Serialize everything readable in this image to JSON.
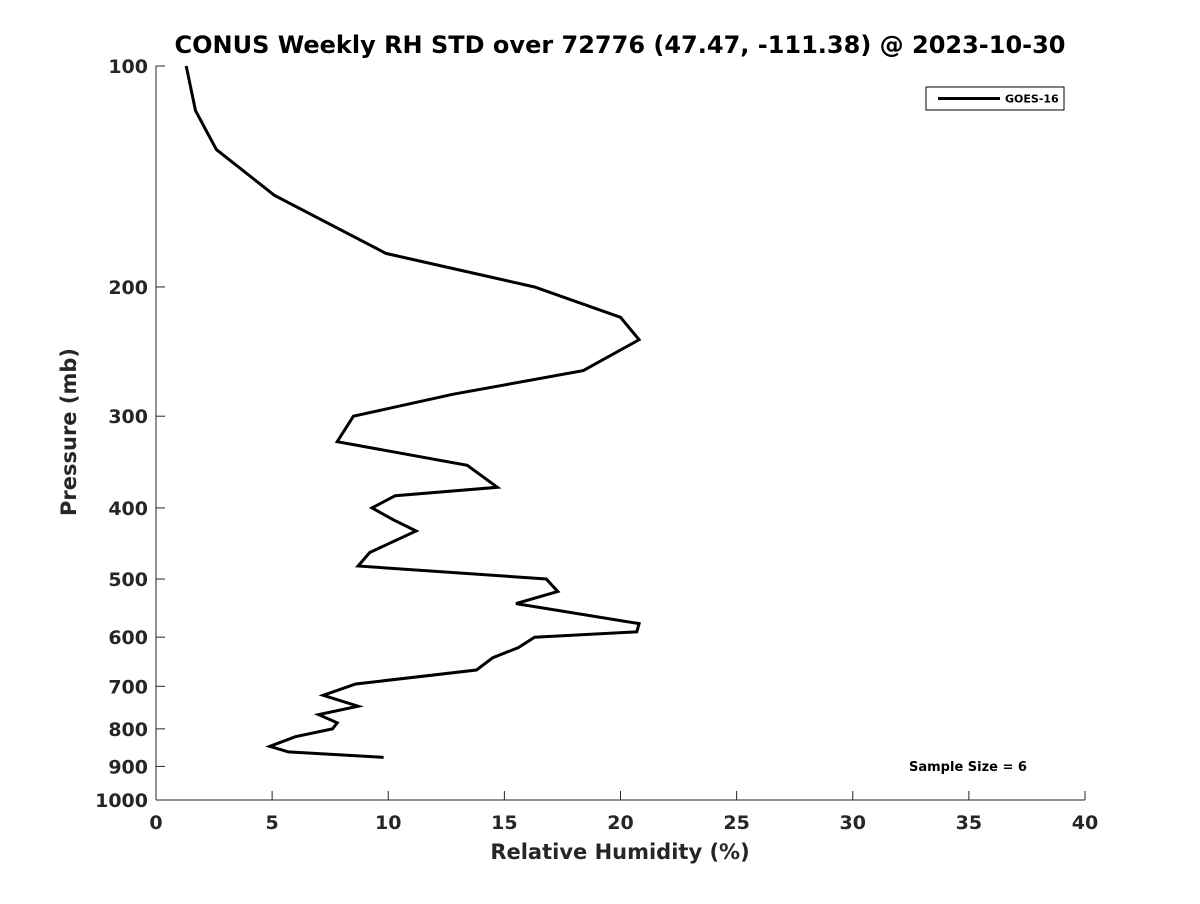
{
  "chart_data": {
    "type": "line",
    "title": "CONUS Weekly RH STD over 72776 (47.47, -111.38) @ 2023-10-30",
    "xlabel": "Relative Humidity (%)",
    "ylabel": "Pressure (mb)",
    "xlim": [
      0,
      40
    ],
    "ylim": [
      100,
      1000
    ],
    "y_scale": "log",
    "y_direction": "reversed",
    "x_ticks": [
      0,
      5,
      10,
      15,
      20,
      25,
      30,
      35,
      40
    ],
    "y_ticks": [
      100,
      200,
      300,
      400,
      500,
      600,
      700,
      800,
      900,
      1000
    ],
    "grid": false,
    "legend_position": "top-right",
    "annotation": "Sample Size = 6",
    "series": [
      {
        "name": "GOES-16",
        "color": "#000000",
        "x": [
          1.3,
          1.7,
          2.6,
          5.1,
          9.9,
          16.3,
          20.0,
          20.8,
          18.4,
          12.8,
          8.5,
          7.8,
          13.4,
          14.7,
          10.3,
          9.3,
          10.2,
          11.2,
          9.2,
          8.7,
          16.8,
          17.3,
          15.5,
          20.8,
          20.7,
          16.3,
          15.6,
          14.5,
          13.8,
          8.6,
          7.2,
          8.7,
          7.0,
          7.8,
          7.6,
          6.0,
          4.9,
          5.7,
          9.8
        ],
        "y": [
          100,
          115,
          130,
          150,
          180,
          200,
          220,
          236,
          260,
          280,
          300,
          325,
          350,
          375,
          385,
          400,
          415,
          430,
          460,
          480,
          500,
          520,
          540,
          575,
          590,
          600,
          620,
          640,
          665,
          695,
          720,
          745,
          765,
          785,
          800,
          820,
          845,
          860,
          875
        ]
      }
    ]
  }
}
